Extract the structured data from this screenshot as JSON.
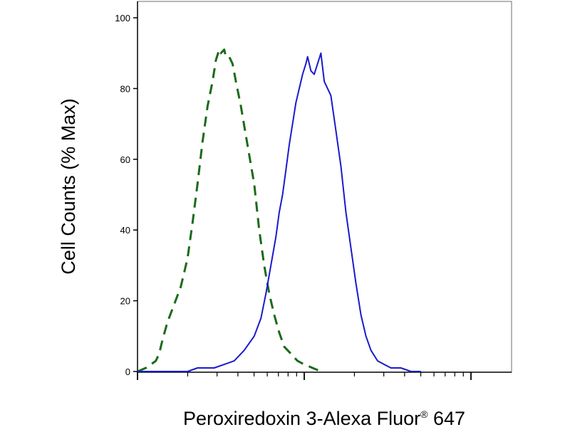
{
  "chart_data": {
    "type": "line",
    "xlabel": "Peroxiredoxin 3-Alexa Fluor",
    "xlabel_sup": "®",
    "xlabel_suffix": " 647",
    "ylabel": "Cell Counts (% Max)",
    "x_scale": "log",
    "ylim": [
      0,
      100
    ],
    "y_ticks": [
      0,
      20,
      40,
      60,
      80,
      100
    ],
    "y_tick_labels": [
      "0",
      "20",
      "40",
      "60",
      "80",
      "100"
    ],
    "grid": false,
    "colors": {
      "control": "#1a6b1a",
      "sample": "#1a1acc"
    },
    "series": [
      {
        "key": "control",
        "style": "dashed",
        "points": [
          [
            0.0,
            0
          ],
          [
            0.05,
            1
          ],
          [
            0.08,
            2
          ],
          [
            0.11,
            3
          ],
          [
            0.13,
            5
          ],
          [
            0.15,
            9
          ],
          [
            0.18,
            14
          ],
          [
            0.22,
            19
          ],
          [
            0.26,
            24
          ],
          [
            0.3,
            32
          ],
          [
            0.33,
            42
          ],
          [
            0.36,
            53
          ],
          [
            0.39,
            65
          ],
          [
            0.42,
            75
          ],
          [
            0.45,
            82
          ],
          [
            0.47,
            88
          ],
          [
            0.49,
            91
          ],
          [
            0.5,
            90
          ],
          [
            0.52,
            91
          ],
          [
            0.53,
            89
          ],
          [
            0.55,
            89
          ],
          [
            0.57,
            87
          ],
          [
            0.59,
            82
          ],
          [
            0.62,
            75
          ],
          [
            0.66,
            64
          ],
          [
            0.7,
            53
          ],
          [
            0.73,
            40
          ],
          [
            0.76,
            30
          ],
          [
            0.79,
            22
          ],
          [
            0.82,
            16
          ],
          [
            0.85,
            11
          ],
          [
            0.88,
            7
          ],
          [
            0.92,
            5
          ],
          [
            0.96,
            3
          ],
          [
            1.0,
            2
          ],
          [
            1.05,
            1
          ],
          [
            1.1,
            0
          ]
        ]
      },
      {
        "key": "sample",
        "style": "solid",
        "points": [
          [
            0.0,
            0
          ],
          [
            0.1,
            0
          ],
          [
            0.2,
            0
          ],
          [
            0.3,
            0
          ],
          [
            0.36,
            1
          ],
          [
            0.42,
            1
          ],
          [
            0.46,
            1
          ],
          [
            0.52,
            2
          ],
          [
            0.58,
            3
          ],
          [
            0.64,
            6
          ],
          [
            0.7,
            10
          ],
          [
            0.74,
            15
          ],
          [
            0.77,
            22
          ],
          [
            0.8,
            30
          ],
          [
            0.83,
            38
          ],
          [
            0.85,
            45
          ],
          [
            0.87,
            50
          ],
          [
            0.89,
            57
          ],
          [
            0.91,
            64
          ],
          [
            0.93,
            70
          ],
          [
            0.95,
            76
          ],
          [
            0.97,
            80
          ],
          [
            0.99,
            84
          ],
          [
            1.01,
            87
          ],
          [
            1.02,
            89
          ],
          [
            1.04,
            85
          ],
          [
            1.06,
            84
          ],
          [
            1.08,
            87
          ],
          [
            1.1,
            90
          ],
          [
            1.12,
            82
          ],
          [
            1.14,
            80
          ],
          [
            1.16,
            78
          ],
          [
            1.19,
            68
          ],
          [
            1.22,
            58
          ],
          [
            1.25,
            45
          ],
          [
            1.28,
            35
          ],
          [
            1.31,
            25
          ],
          [
            1.34,
            16
          ],
          [
            1.37,
            10
          ],
          [
            1.4,
            6
          ],
          [
            1.44,
            3
          ],
          [
            1.48,
            2
          ],
          [
            1.52,
            1
          ],
          [
            1.58,
            1
          ],
          [
            1.64,
            0
          ],
          [
            1.7,
            0
          ]
        ]
      }
    ]
  }
}
